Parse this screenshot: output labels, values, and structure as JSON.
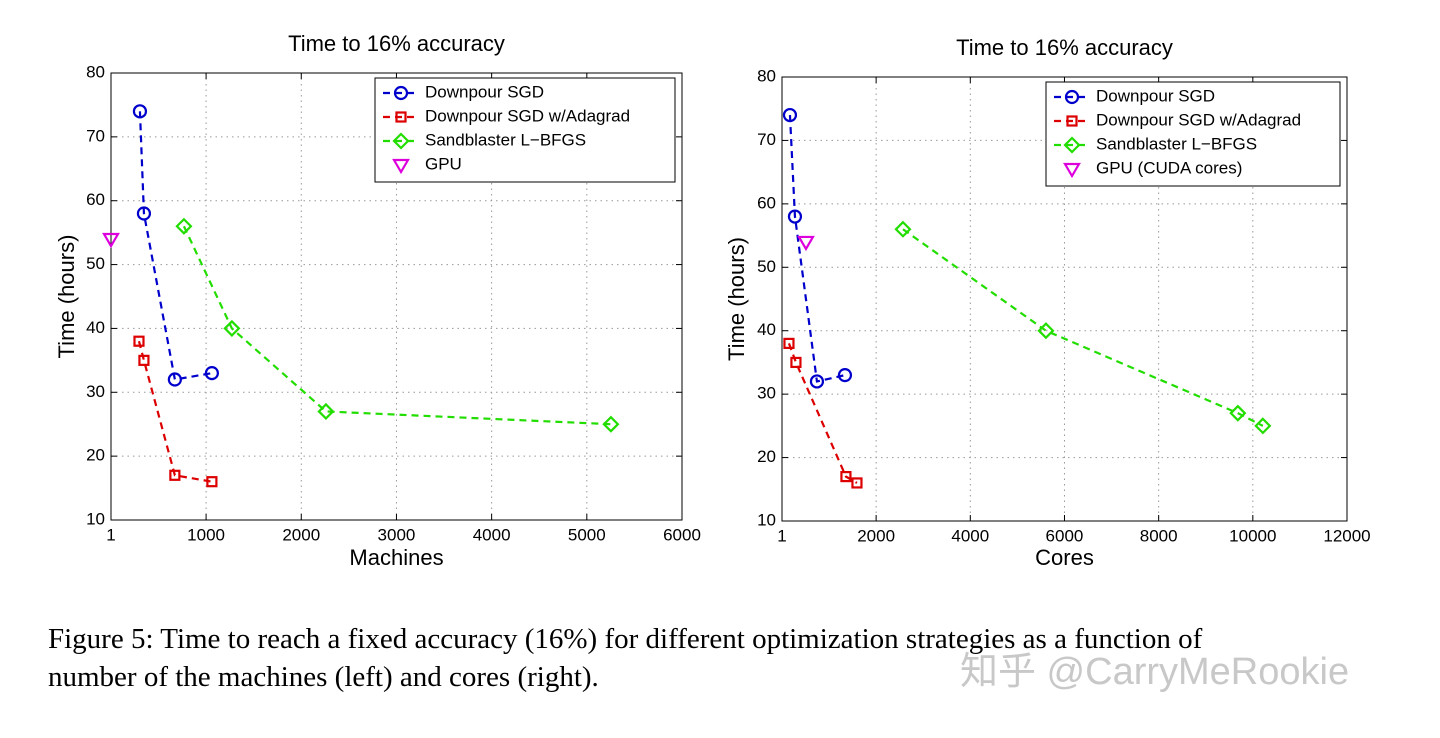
{
  "chart_data": [
    {
      "type": "line",
      "title": "Time to 16% accuracy",
      "x_label": "Machines",
      "y_label": "Time (hours)",
      "xlim": [
        1,
        6000
      ],
      "xticks": [
        1,
        1000,
        2000,
        3000,
        4000,
        5000,
        6000
      ],
      "ylim": [
        10,
        80
      ],
      "yticks": [
        10,
        20,
        30,
        40,
        50,
        60,
        70,
        80
      ],
      "grid": true,
      "legend": "upper right",
      "series": [
        {
          "name": "Downpour SGD",
          "color": "#0000cc",
          "marker": "circle",
          "line_style": "dashed",
          "x": [
            305,
            347,
            672,
            1061
          ],
          "values": [
            74,
            58,
            32,
            33
          ]
        },
        {
          "name": "Downpour SGD w/Adagrad",
          "color": "#dd0000",
          "marker": "square",
          "line_style": "dashed",
          "x": [
            295,
            347,
            672,
            1061
          ],
          "values": [
            38,
            35,
            17,
            16
          ]
        },
        {
          "name": "Sandblaster L−BFGS",
          "color": "#22dd00",
          "marker": "diamond",
          "line_style": "dashed",
          "x": [
            767,
            1271,
            2259,
            5253
          ],
          "values": [
            56,
            40,
            27,
            25
          ]
        },
        {
          "name": "GPU",
          "color": "#dd00dd",
          "marker": "triangle-down",
          "line_style": "none",
          "x": [
            1
          ],
          "values": [
            54
          ]
        }
      ]
    },
    {
      "type": "line",
      "title": "Time to 16% accuracy",
      "x_label": "Cores",
      "y_label": "Time (hours)",
      "xlim": [
        1,
        12000
      ],
      "xticks": [
        1,
        2000,
        4000,
        6000,
        8000,
        10000,
        12000
      ],
      "ylim": [
        10,
        80
      ],
      "yticks": [
        10,
        20,
        30,
        40,
        50,
        60,
        70,
        80
      ],
      "grid": true,
      "legend": "upper right",
      "series": [
        {
          "name": "Downpour SGD",
          "color": "#0000cc",
          "marker": "circle",
          "line_style": "dashed",
          "x": [
            170,
            276,
            743,
            1338
          ],
          "values": [
            74,
            58,
            32,
            33
          ]
        },
        {
          "name": "Downpour SGD w/Adagrad",
          "color": "#dd0000",
          "marker": "square",
          "line_style": "dashed",
          "x": [
            149,
            297,
            1359,
            1593
          ],
          "values": [
            38,
            35,
            17,
            16
          ]
        },
        {
          "name": "Sandblaster L−BFGS",
          "color": "#22dd00",
          "marker": "diamond",
          "line_style": "dashed",
          "x": [
            2570,
            5606,
            9682,
            10213
          ],
          "values": [
            56,
            40,
            27,
            25
          ]
        },
        {
          "name": "GPU (CUDA cores)",
          "color": "#dd00dd",
          "marker": "triangle-down",
          "line_style": "none",
          "x": [
            510
          ],
          "values": [
            54
          ]
        }
      ]
    }
  ],
  "caption": [
    "Figure 5: Time to reach a fixed accuracy (16%) for different optimization strategies as a function of",
    "number of the machines (left) and cores (right)."
  ],
  "watermark": "知乎 @CarryMeRookie"
}
